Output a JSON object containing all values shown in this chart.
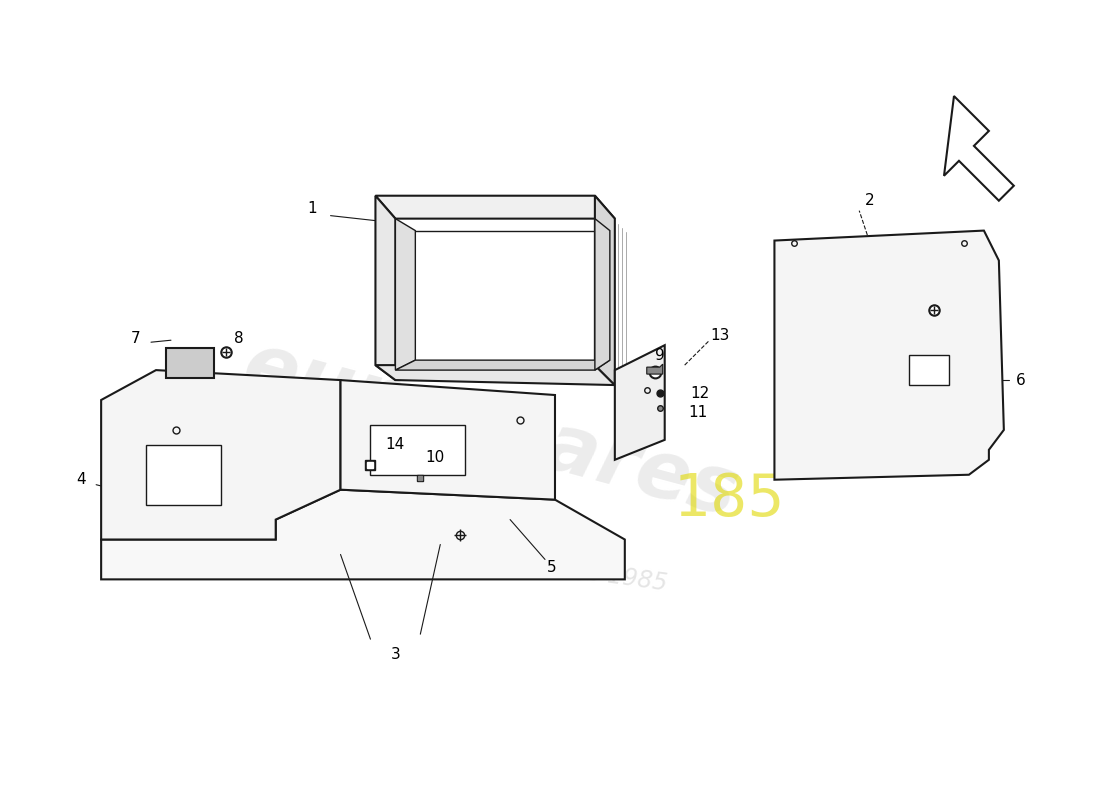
{
  "bg_color": "#ffffff",
  "line_color": "#1a1a1a",
  "label_color": "#000000",
  "figure_size": [
    11.0,
    8.0
  ],
  "dpi": 100
}
